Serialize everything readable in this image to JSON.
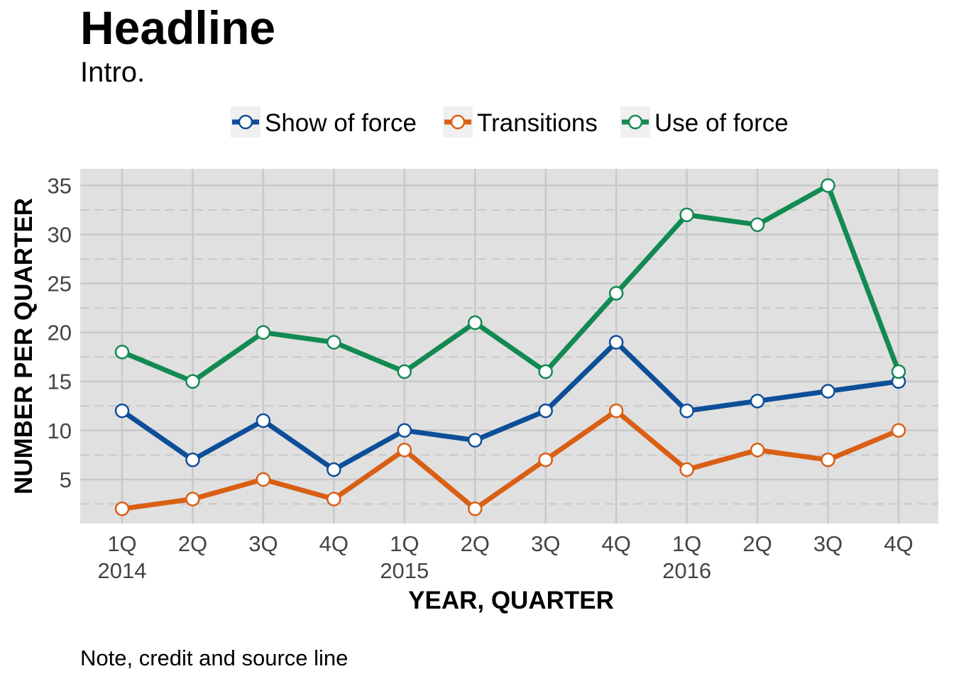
{
  "headline": "Headline",
  "intro": "Intro.",
  "note": "Note, credit and source line",
  "chart_data": {
    "type": "line",
    "title": "Headline",
    "subtitle": "Intro.",
    "xlabel": "YEAR, QUARTER",
    "ylabel": "NUMBER PER QUARTER",
    "categories": [
      "1Q",
      "2Q",
      "3Q",
      "4Q",
      "1Q",
      "2Q",
      "3Q",
      "4Q",
      "1Q",
      "2Q",
      "3Q",
      "4Q"
    ],
    "year_labels": [
      "2014",
      "",
      "",
      "",
      "2015",
      "",
      "",
      "",
      "2016",
      "",
      "",
      ""
    ],
    "y_ticks": [
      5,
      10,
      15,
      20,
      25,
      30,
      35
    ],
    "ylim": [
      0.5,
      36.7
    ],
    "grid": true,
    "legend_position": "top",
    "series": [
      {
        "name": "Show of force",
        "color": "#0d4e98",
        "values": [
          12,
          7,
          11,
          6,
          10,
          9,
          12,
          19,
          12,
          13,
          14,
          15
        ]
      },
      {
        "name": "Transitions",
        "color": "#d95f14",
        "values": [
          2,
          3,
          5,
          3,
          8,
          2,
          7,
          12,
          6,
          8,
          7,
          10
        ]
      },
      {
        "name": "Use of force",
        "color": "#128a52",
        "values": [
          18,
          15,
          20,
          19,
          16,
          21,
          16,
          24,
          32,
          31,
          35,
          16
        ]
      }
    ],
    "panel_color": "#e0e0e0",
    "grid_color": "#c8c8c8"
  }
}
